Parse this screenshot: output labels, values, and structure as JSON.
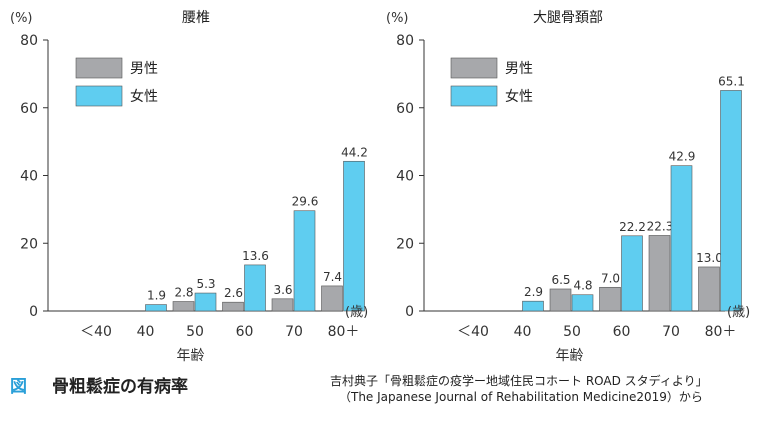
{
  "caption": {
    "figure_label": "図",
    "title": "骨粗鬆症の有病率",
    "source_line1": "吉村典子「骨粗鬆症の疫学ー地域住民コホート ROAD スタディより」",
    "source_line2": "（The Japanese Journal of Rehabilitation Medicine2019）から"
  },
  "colors": {
    "male": "#a7a8ab",
    "female": "#5fcdf0",
    "axis": "#333333"
  },
  "chart_data": [
    {
      "type": "bar",
      "title": "腰椎",
      "ylabel": "(%)",
      "xunit": "(歳)",
      "xlabel": "年齢",
      "ylim": [
        0,
        80
      ],
      "yticks": [
        0,
        20,
        40,
        60,
        80
      ],
      "x_ticks": [
        "＜40",
        "40",
        "50",
        "60",
        "70",
        "80＋"
      ],
      "legend": "top-left",
      "series": [
        {
          "name": "男性",
          "values": [
            null,
            null,
            2.8,
            2.6,
            3.6,
            7.4
          ],
          "labels": [
            "",
            "",
            "2.8",
            "2.6",
            "3.6",
            "7.4"
          ]
        },
        {
          "name": "女性",
          "values": [
            null,
            1.9,
            5.3,
            13.6,
            29.6,
            44.2
          ],
          "labels": [
            "",
            "1.9",
            "5.3",
            "13.6",
            "29.6",
            "44.2"
          ]
        }
      ]
    },
    {
      "type": "bar",
      "title": "大腿骨頚部",
      "ylabel": "(%)",
      "xunit": "(歳)",
      "xlabel": "年齢",
      "ylim": [
        0,
        80
      ],
      "yticks": [
        0,
        20,
        40,
        60,
        80
      ],
      "x_ticks": [
        "＜40",
        "40",
        "50",
        "60",
        "70",
        "80＋"
      ],
      "legend": "top-left",
      "series": [
        {
          "name": "男性",
          "values": [
            null,
            null,
            6.5,
            7.0,
            22.3,
            13.0
          ],
          "labels": [
            "",
            "",
            "6.5",
            "7.0",
            "22.3",
            "13.0"
          ]
        },
        {
          "name": "女性",
          "values": [
            null,
            2.9,
            4.8,
            22.2,
            42.9,
            65.1
          ],
          "labels": [
            "",
            "2.9",
            "4.8",
            "22.2",
            "42.9",
            "65.1"
          ]
        }
      ]
    }
  ]
}
